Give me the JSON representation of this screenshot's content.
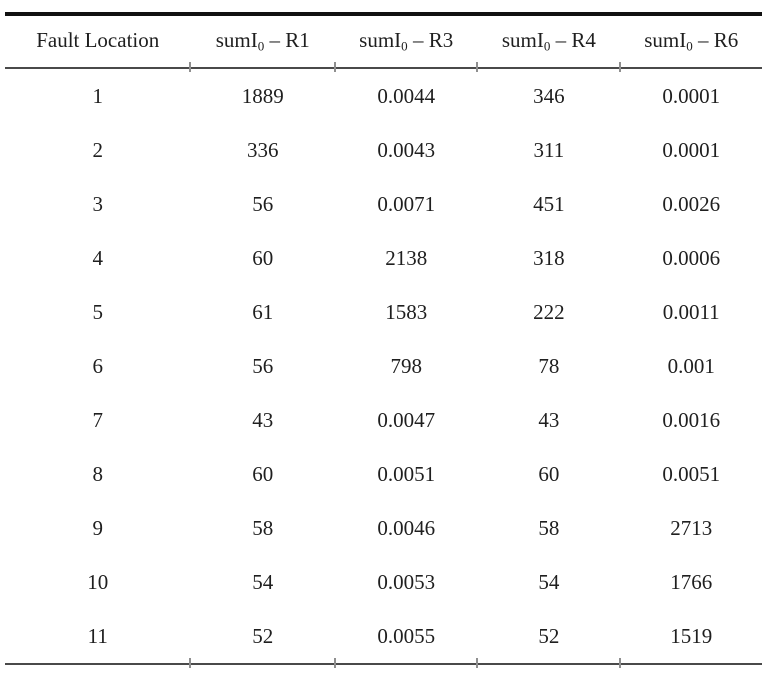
{
  "table": {
    "headers": [
      {
        "prefix": "Fault Location",
        "sub": "",
        "suffix": ""
      },
      {
        "prefix": "sumI",
        "sub": "0",
        "suffix": " – R1"
      },
      {
        "prefix": "sumI",
        "sub": "0",
        "suffix": " – R3"
      },
      {
        "prefix": "sumI",
        "sub": "0",
        "suffix": " – R4"
      },
      {
        "prefix": "sumI",
        "sub": "0",
        "suffix": " – R6"
      }
    ],
    "rows": [
      [
        "1",
        "1889",
        "0.0044",
        "346",
        "0.0001"
      ],
      [
        "2",
        "336",
        "0.0043",
        "311",
        "0.0001"
      ],
      [
        "3",
        "56",
        "0.0071",
        "451",
        "0.0026"
      ],
      [
        "4",
        "60",
        "2138",
        "318",
        "0.0006"
      ],
      [
        "5",
        "61",
        "1583",
        "222",
        "0.0011"
      ],
      [
        "6",
        "56",
        "798",
        "78",
        "0.001"
      ],
      [
        "7",
        "43",
        "0.0047",
        "43",
        "0.0016"
      ],
      [
        "8",
        "60",
        "0.0051",
        "60",
        "0.0051"
      ],
      [
        "9",
        "58",
        "0.0046",
        "58",
        "2713"
      ],
      [
        "10",
        "54",
        "0.0053",
        "54",
        "1766"
      ],
      [
        "11",
        "52",
        "0.0055",
        "52",
        "1519"
      ]
    ]
  },
  "colors": {
    "text": "#1f1f1f",
    "top_rule": "#111111",
    "thin_rule": "#4a4a4a",
    "tick": "#8f8f8f",
    "background": "#ffffff"
  }
}
